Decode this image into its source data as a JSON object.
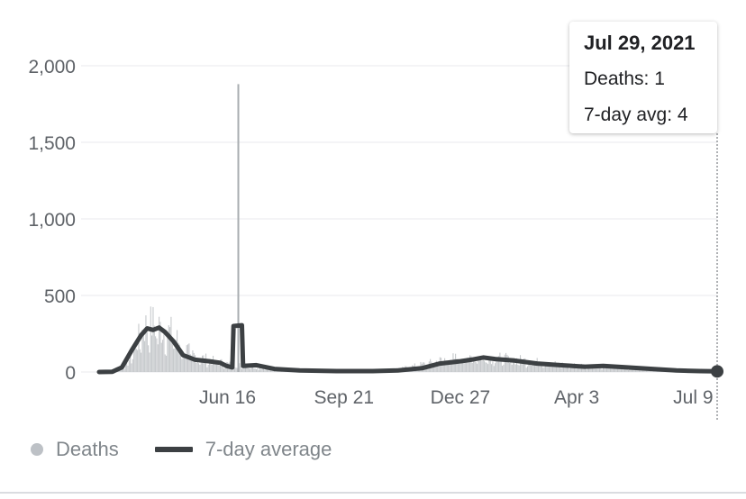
{
  "tooltip": {
    "date": "Jul 29, 2021",
    "deaths": "Deaths: 1",
    "avg": "7-day avg: 4"
  },
  "legend": {
    "deaths": "Deaths",
    "avg": "7-day average"
  },
  "colors": {
    "bars": "#c4c7ca",
    "line": "#3c4043",
    "grid": "#e8eaed",
    "text": "#5f6368"
  },
  "chart_data": {
    "type": "bar",
    "x_start": "2020-03-01",
    "x_end": "2021-07-29",
    "ylim": [
      0,
      2000
    ],
    "y_ticks": [
      0,
      500,
      1000,
      1500,
      2000
    ],
    "y_tick_labels": [
      "0",
      "500",
      "1,000",
      "1,500",
      "2,000"
    ],
    "x_ticks": [
      "2020-06-16",
      "2020-09-21",
      "2020-12-27",
      "2021-04-03",
      "2021-07-09"
    ],
    "x_tick_labels": [
      "Jun 16",
      "Sep 21",
      "Dec 27",
      "Apr 3",
      "Jul 9"
    ],
    "series": [
      {
        "name": "Deaths",
        "type": "bar",
        "daily_profile": [
          [
            "2020-03-01",
            0
          ],
          [
            "2020-03-15",
            5
          ],
          [
            "2020-03-25",
            60
          ],
          [
            "2020-04-01",
            180
          ],
          [
            "2020-04-08",
            280
          ],
          [
            "2020-04-15",
            300
          ],
          [
            "2020-04-22",
            270
          ],
          [
            "2020-05-01",
            240
          ],
          [
            "2020-05-10",
            150
          ],
          [
            "2020-05-20",
            100
          ],
          [
            "2020-06-01",
            75
          ],
          [
            "2020-06-10",
            60
          ],
          [
            "2020-06-20",
            45
          ],
          [
            "2020-06-30",
            40
          ],
          [
            "2020-07-10",
            30
          ],
          [
            "2020-08-01",
            12
          ],
          [
            "2020-09-01",
            7
          ],
          [
            "2020-10-01",
            6
          ],
          [
            "2020-10-20",
            8
          ],
          [
            "2020-11-10",
            25
          ],
          [
            "2020-12-01",
            55
          ],
          [
            "2020-12-15",
            80
          ],
          [
            "2021-01-05",
            95
          ],
          [
            "2021-01-20",
            90
          ],
          [
            "2021-02-15",
            75
          ],
          [
            "2021-03-15",
            50
          ],
          [
            "2021-04-10",
            40
          ],
          [
            "2021-05-01",
            35
          ],
          [
            "2021-05-20",
            25
          ],
          [
            "2021-06-15",
            15
          ],
          [
            "2021-07-29",
            1
          ]
        ],
        "spike": {
          "date": "2020-06-25",
          "value": 1880
        }
      },
      {
        "name": "7-day average",
        "type": "line",
        "points": [
          [
            "2020-03-01",
            0
          ],
          [
            "2020-03-12",
            2
          ],
          [
            "2020-03-20",
            30
          ],
          [
            "2020-03-28",
            140
          ],
          [
            "2020-04-05",
            240
          ],
          [
            "2020-04-10",
            285
          ],
          [
            "2020-04-15",
            275
          ],
          [
            "2020-04-20",
            290
          ],
          [
            "2020-04-25",
            260
          ],
          [
            "2020-05-02",
            200
          ],
          [
            "2020-05-10",
            110
          ],
          [
            "2020-05-20",
            80
          ],
          [
            "2020-06-01",
            70
          ],
          [
            "2020-06-10",
            60
          ],
          [
            "2020-06-15",
            40
          ],
          [
            "2020-06-20",
            30
          ],
          [
            "2020-06-21",
            300
          ],
          [
            "2020-06-28",
            305
          ],
          [
            "2020-06-29",
            40
          ],
          [
            "2020-07-10",
            45
          ],
          [
            "2020-07-25",
            20
          ],
          [
            "2020-08-15",
            10
          ],
          [
            "2020-09-15",
            6
          ],
          [
            "2020-10-15",
            6
          ],
          [
            "2020-11-05",
            10
          ],
          [
            "2020-11-25",
            25
          ],
          [
            "2020-12-10",
            55
          ],
          [
            "2020-12-27",
            70
          ],
          [
            "2021-01-05",
            80
          ],
          [
            "2021-01-15",
            95
          ],
          [
            "2021-01-25",
            85
          ],
          [
            "2021-02-10",
            75
          ],
          [
            "2021-03-01",
            55
          ],
          [
            "2021-03-20",
            45
          ],
          [
            "2021-04-10",
            35
          ],
          [
            "2021-04-25",
            40
          ],
          [
            "2021-05-15",
            30
          ],
          [
            "2021-06-05",
            20
          ],
          [
            "2021-06-25",
            10
          ],
          [
            "2021-07-15",
            6
          ],
          [
            "2021-07-29",
            4
          ]
        ]
      }
    ],
    "highlight": {
      "date": "2021-07-29",
      "deaths": 1,
      "avg": 4
    },
    "legend_position": "bottom-left",
    "grid": true
  }
}
